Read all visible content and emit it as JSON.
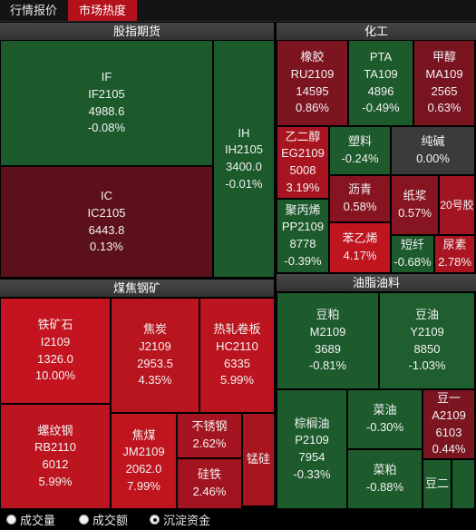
{
  "tabs": [
    {
      "label": "行情报价",
      "active": false
    },
    {
      "label": "市场热度",
      "active": true
    }
  ],
  "colors": {
    "page_bg": "#000000",
    "tab_active_bg": "#b3121c",
    "section_header_bg": "#3a3a3a",
    "up": "#b8151f",
    "down": "#1d5b2c",
    "flat": "#3b3b3b"
  },
  "sections": [
    {
      "title": "股指期货",
      "cells": [
        {
          "name": "IF",
          "code": "IF2105",
          "price": "4988.6",
          "change": "-0.08%",
          "color": "#1c5a2b"
        },
        {
          "name": "IC",
          "code": "IC2105",
          "price": "6443.8",
          "change": "0.13%",
          "color": "#5c1019"
        },
        {
          "name": "IH",
          "code": "IH2105",
          "price": "3400.0",
          "change": "-0.01%",
          "color": "#1c5a2b"
        }
      ]
    },
    {
      "title": "化工",
      "cells": [
        {
          "name": "橡胶",
          "code": "RU2109",
          "price": "14595",
          "change": "0.86%",
          "color": "#7d1521"
        },
        {
          "name": "PTA",
          "code": "TA109",
          "price": "4896",
          "change": "-0.49%",
          "color": "#1d5b2c"
        },
        {
          "name": "甲醇",
          "code": "MA109",
          "price": "2565",
          "change": "0.63%",
          "color": "#781420"
        },
        {
          "name": "乙二醇",
          "code": "EG2109",
          "price": "5008",
          "change": "3.19%",
          "color": "#a81521"
        },
        {
          "name": "塑料",
          "change": "-0.24%",
          "color": "#1d5b2c"
        },
        {
          "name": "纯碱",
          "change": "0.00%",
          "color": "#3b3b3b"
        },
        {
          "name": "沥青",
          "change": "0.58%",
          "color": "#861421"
        },
        {
          "name": "纸浆",
          "change": "0.57%",
          "color": "#861421"
        },
        {
          "name": "20号胶",
          "color": "#a01521"
        },
        {
          "name": "聚丙烯",
          "code": "PP2109",
          "price": "8778",
          "change": "-0.39%",
          "color": "#1d5b2c"
        },
        {
          "name": "苯乙烯",
          "change": "4.17%",
          "color": "#c0141f"
        },
        {
          "name": "短纤",
          "change": "-0.68%",
          "color": "#1d5b2c"
        },
        {
          "name": "尿素",
          "change": "2.78%",
          "color": "#ab1521"
        }
      ]
    },
    {
      "title": "煤焦钢矿",
      "cells": [
        {
          "name": "铁矿石",
          "code": "I2109",
          "price": "1326.0",
          "change": "10.00%",
          "color": "#c4141f"
        },
        {
          "name": "焦炭",
          "code": "J2109",
          "price": "2953.5",
          "change": "4.35%",
          "color": "#b8151f"
        },
        {
          "name": "热轧卷板",
          "code": "HC2110",
          "price": "6335",
          "change": "5.99%",
          "color": "#bc1520"
        },
        {
          "name": "螺纹钢",
          "code": "RB2110",
          "price": "6012",
          "change": "5.99%",
          "color": "#bc1520"
        },
        {
          "name": "焦煤",
          "code": "JM2109",
          "price": "2062.0",
          "change": "7.99%",
          "color": "#c0141f"
        },
        {
          "name": "不锈钢",
          "change": "2.62%",
          "color": "#a51521"
        },
        {
          "name": "硅铁",
          "change": "2.46%",
          "color": "#a31421"
        },
        {
          "name": "锰硅",
          "color": "#a81521"
        }
      ]
    },
    {
      "title": "油脂油料",
      "cells": [
        {
          "name": "豆粕",
          "code": "M2109",
          "price": "3689",
          "change": "-0.81%",
          "color": "#1d5b2c"
        },
        {
          "name": "豆油",
          "code": "Y2109",
          "price": "8850",
          "change": "-1.03%",
          "color": "#1f5e2e"
        },
        {
          "name": "棕榈油",
          "code": "P2109",
          "price": "7954",
          "change": "-0.33%",
          "color": "#1d5b2c"
        },
        {
          "name": "菜油",
          "change": "-0.30%",
          "color": "#1d5b2c"
        },
        {
          "name": "菜粕",
          "change": "-0.88%",
          "color": "#1d5b2c"
        },
        {
          "name": "豆一",
          "code": "A2109",
          "price": "6103",
          "change": "0.44%",
          "color": "#7a1521"
        },
        {
          "name": "豆二",
          "color": "#1d5b2c"
        },
        {
          "color": "#1d5b2c"
        }
      ]
    }
  ],
  "metric_options": [
    {
      "label": "成交量",
      "selected": false
    },
    {
      "label": "成交额",
      "selected": false
    },
    {
      "label": "沉淀资金",
      "selected": true
    }
  ]
}
